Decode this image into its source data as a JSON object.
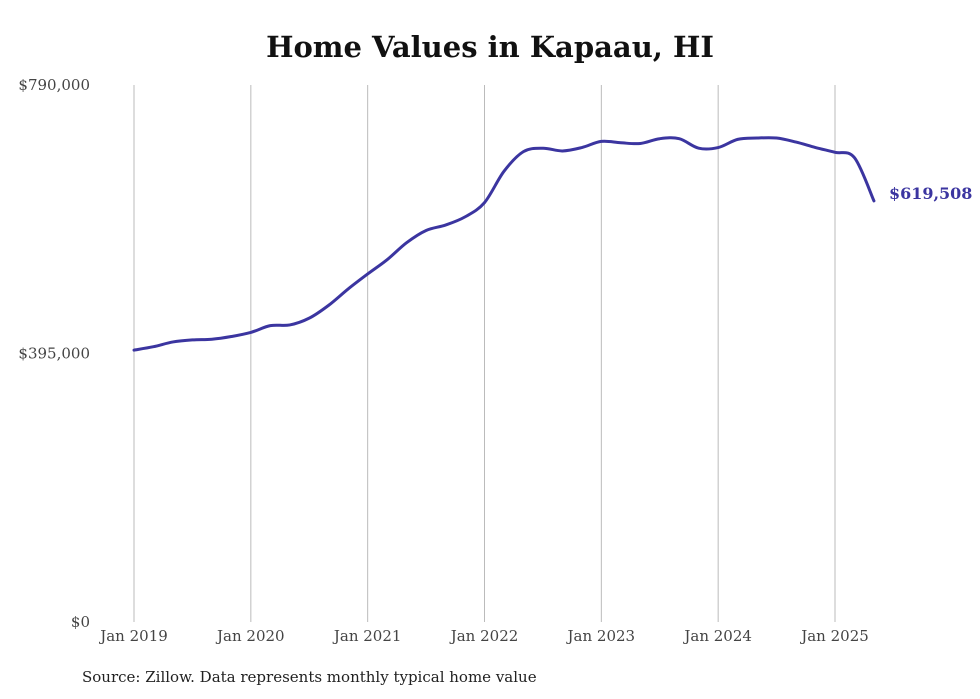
{
  "chart_data": {
    "type": "line",
    "title": "Home Values in Kapaau, HI",
    "source": "Source: Zillow. Data represents monthly typical home value",
    "ylim": [
      0,
      790000
    ],
    "y_ticks": [
      0,
      395000,
      790000
    ],
    "y_tick_labels": [
      "$0",
      "$395,000",
      "$790,000"
    ],
    "x_ticks": [
      "2019-01",
      "2020-01",
      "2021-01",
      "2022-01",
      "2023-01",
      "2024-01",
      "2025-01"
    ],
    "x_tick_labels": [
      "Jan 2019",
      "Jan 2020",
      "Jan 2021",
      "Jan 2022",
      "Jan 2023",
      "Jan 2024",
      "Jan 2025"
    ],
    "grid": "vertical",
    "line_color": "#3b35a0",
    "end_label": "$619,508",
    "series": [
      {
        "x": [
          "2019-01",
          "2019-03",
          "2019-05",
          "2019-07",
          "2019-09",
          "2019-11",
          "2020-01",
          "2020-03",
          "2020-05",
          "2020-07",
          "2020-09",
          "2020-11",
          "2021-01",
          "2021-03",
          "2021-05",
          "2021-07",
          "2021-09",
          "2021-11",
          "2022-01",
          "2022-03",
          "2022-05",
          "2022-07",
          "2022-09",
          "2022-11",
          "2023-01",
          "2023-03",
          "2023-05",
          "2023-07",
          "2023-09",
          "2023-11",
          "2024-01",
          "2024-03",
          "2024-05",
          "2024-07",
          "2024-09",
          "2024-11",
          "2025-01",
          "2025-03",
          "2025-05"
        ],
        "values": [
          400000,
          405000,
          412000,
          415000,
          416000,
          420000,
          426000,
          436000,
          437000,
          447000,
          466000,
          490000,
          512000,
          533000,
          558000,
          576000,
          584000,
          596000,
          617000,
          663000,
          692000,
          697000,
          693000,
          698000,
          707000,
          705000,
          704000,
          711000,
          711000,
          697000,
          698000,
          710000,
          712000,
          712000,
          706000,
          698000,
          691000,
          683000,
          619508
        ]
      }
    ]
  }
}
